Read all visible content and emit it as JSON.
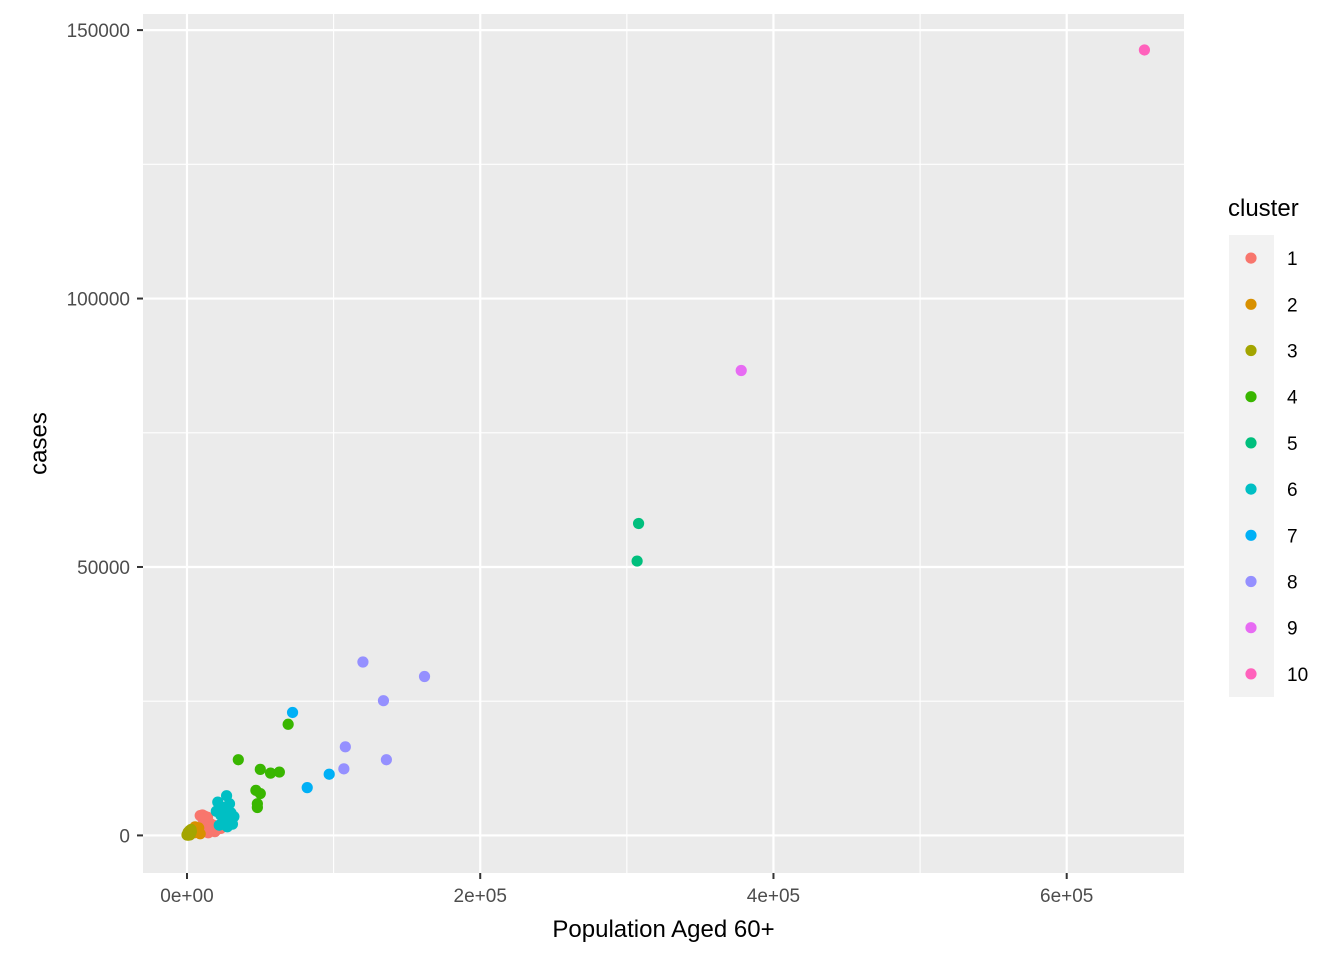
{
  "chart_data": {
    "type": "scatter",
    "xlabel": "Population Aged 60+",
    "ylabel": "cases",
    "xlim": [
      -30000,
      680000
    ],
    "ylim": [
      -7000,
      153000
    ],
    "x_ticks": [
      0,
      200000,
      400000,
      600000
    ],
    "x_tick_labels": [
      "0e+00",
      "2e+05",
      "4e+05",
      "6e+05"
    ],
    "y_ticks": [
      0,
      50000,
      100000,
      150000
    ],
    "y_tick_labels": [
      "0",
      "50000",
      "100000",
      "150000"
    ],
    "grid": true,
    "legend": {
      "title": "cluster",
      "placement": "right"
    },
    "series": [
      {
        "name": "1",
        "color": "#F8766D",
        "points": [
          [
            9000,
            3700
          ],
          [
            10500,
            3800
          ],
          [
            12000,
            3600
          ],
          [
            14000,
            3400
          ],
          [
            11000,
            3000
          ],
          [
            13000,
            2600
          ],
          [
            16000,
            2200
          ],
          [
            18000,
            1900
          ],
          [
            10000,
            1600
          ],
          [
            12500,
            1300
          ],
          [
            15000,
            1100
          ],
          [
            17000,
            900
          ],
          [
            19000,
            700
          ],
          [
            21000,
            1200
          ],
          [
            8500,
            900
          ],
          [
            14500,
            500
          ],
          [
            11500,
            2000
          ],
          [
            16500,
            1500
          ],
          [
            20000,
            1000
          ],
          [
            23000,
            1300
          ],
          [
            7500,
            600
          ]
        ]
      },
      {
        "name": "2",
        "color": "#D89000",
        "points": [
          [
            4000,
            1200
          ],
          [
            5500,
            1600
          ],
          [
            6500,
            1100
          ],
          [
            7000,
            700
          ],
          [
            5000,
            500
          ],
          [
            3500,
            800
          ],
          [
            8000,
            1400
          ],
          [
            9000,
            300
          ]
        ]
      },
      {
        "name": "3",
        "color": "#A3A500",
        "points": [
          [
            0,
            100
          ],
          [
            500,
            300
          ],
          [
            1000,
            200
          ],
          [
            1500,
            500
          ],
          [
            2000,
            100
          ],
          [
            2500,
            400
          ],
          [
            3000,
            700
          ],
          [
            800,
            600
          ],
          [
            1800,
            900
          ],
          [
            2800,
            1100
          ],
          [
            300,
            50
          ],
          [
            1200,
            50
          ]
        ]
      },
      {
        "name": "4",
        "color": "#39B600",
        "points": [
          [
            69000,
            20700
          ],
          [
            35000,
            14100
          ],
          [
            50000,
            12300
          ],
          [
            57000,
            11600
          ],
          [
            63000,
            11800
          ],
          [
            47000,
            8400
          ],
          [
            50000,
            7800
          ],
          [
            48000,
            5900
          ],
          [
            48000,
            5200
          ]
        ]
      },
      {
        "name": "5",
        "color": "#00BF7D",
        "points": [
          [
            308000,
            58100
          ],
          [
            307000,
            51100
          ]
        ]
      },
      {
        "name": "6",
        "color": "#00BFC4",
        "points": [
          [
            27000,
            7400
          ],
          [
            21000,
            6200
          ],
          [
            29000,
            5900
          ],
          [
            25000,
            5200
          ],
          [
            20000,
            4500
          ],
          [
            30000,
            4200
          ],
          [
            23000,
            3800
          ],
          [
            32000,
            3500
          ],
          [
            26000,
            3100
          ],
          [
            28000,
            2700
          ],
          [
            24000,
            2300
          ],
          [
            31000,
            2100
          ],
          [
            22000,
            1900
          ],
          [
            27500,
            1600
          ]
        ]
      },
      {
        "name": "7",
        "color": "#00B0F6",
        "points": [
          [
            72000,
            22900
          ],
          [
            97000,
            11400
          ],
          [
            82000,
            8900
          ]
        ]
      },
      {
        "name": "8",
        "color": "#9590FF",
        "points": [
          [
            120000,
            32300
          ],
          [
            162000,
            29600
          ],
          [
            134000,
            25100
          ],
          [
            108000,
            16500
          ],
          [
            107000,
            12400
          ],
          [
            136000,
            14100
          ]
        ]
      },
      {
        "name": "9",
        "color": "#E76BF3",
        "points": [
          [
            378000,
            86600
          ]
        ]
      },
      {
        "name": "10",
        "color": "#FF62BC",
        "points": [
          [
            653000,
            146300
          ]
        ]
      }
    ]
  }
}
